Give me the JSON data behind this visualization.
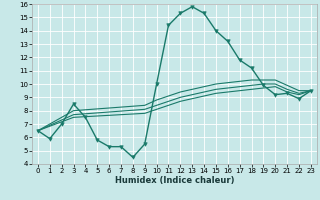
{
  "title": "",
  "xlabel": "Humidex (Indice chaleur)",
  "bg_color": "#c8e8e8",
  "grid_color": "#ffffff",
  "line_color": "#1a7a6a",
  "xlim": [
    -0.5,
    23.5
  ],
  "ylim": [
    4,
    16
  ],
  "xticks": [
    0,
    1,
    2,
    3,
    4,
    5,
    6,
    7,
    8,
    9,
    10,
    11,
    12,
    13,
    14,
    15,
    16,
    17,
    18,
    19,
    20,
    21,
    22,
    23
  ],
  "yticks": [
    4,
    5,
    6,
    7,
    8,
    9,
    10,
    11,
    12,
    13,
    14,
    15,
    16
  ],
  "series": [
    {
      "x": [
        0,
        1,
        2,
        3,
        4,
        5,
        6,
        7,
        8,
        9,
        10,
        11,
        12,
        13,
        14,
        15,
        16,
        17,
        18,
        19,
        20,
        21,
        22,
        23
      ],
      "y": [
        6.5,
        5.9,
        7.0,
        8.5,
        7.5,
        5.8,
        5.3,
        5.3,
        4.5,
        5.5,
        10.0,
        14.4,
        15.3,
        15.8,
        15.3,
        14.0,
        13.2,
        11.8,
        11.2,
        9.9,
        9.2,
        9.3,
        8.9,
        9.5
      ],
      "marker": "v",
      "markersize": 2.5,
      "linewidth": 1.0
    },
    {
      "x": [
        0,
        3,
        9,
        10,
        11,
        12,
        13,
        14,
        15,
        16,
        17,
        18,
        19,
        20,
        21,
        22,
        23
      ],
      "y": [
        6.5,
        7.5,
        7.8,
        8.1,
        8.4,
        8.7,
        8.9,
        9.1,
        9.3,
        9.4,
        9.5,
        9.6,
        9.7,
        9.8,
        9.4,
        9.2,
        9.5
      ],
      "marker": null,
      "markersize": 0,
      "linewidth": 0.8
    },
    {
      "x": [
        0,
        3,
        9,
        10,
        11,
        12,
        13,
        14,
        15,
        16,
        17,
        18,
        19,
        20,
        21,
        22,
        23
      ],
      "y": [
        6.5,
        7.7,
        8.1,
        8.4,
        8.7,
        9.0,
        9.2,
        9.4,
        9.6,
        9.7,
        9.8,
        9.9,
        10.0,
        10.0,
        9.6,
        9.3,
        9.5
      ],
      "marker": null,
      "markersize": 0,
      "linewidth": 0.8
    },
    {
      "x": [
        0,
        3,
        9,
        10,
        11,
        12,
        13,
        14,
        15,
        16,
        17,
        18,
        19,
        20,
        21,
        22,
        23
      ],
      "y": [
        6.5,
        8.0,
        8.4,
        8.8,
        9.1,
        9.4,
        9.6,
        9.8,
        10.0,
        10.1,
        10.2,
        10.3,
        10.3,
        10.3,
        9.9,
        9.5,
        9.5
      ],
      "marker": null,
      "markersize": 0,
      "linewidth": 0.8
    }
  ]
}
